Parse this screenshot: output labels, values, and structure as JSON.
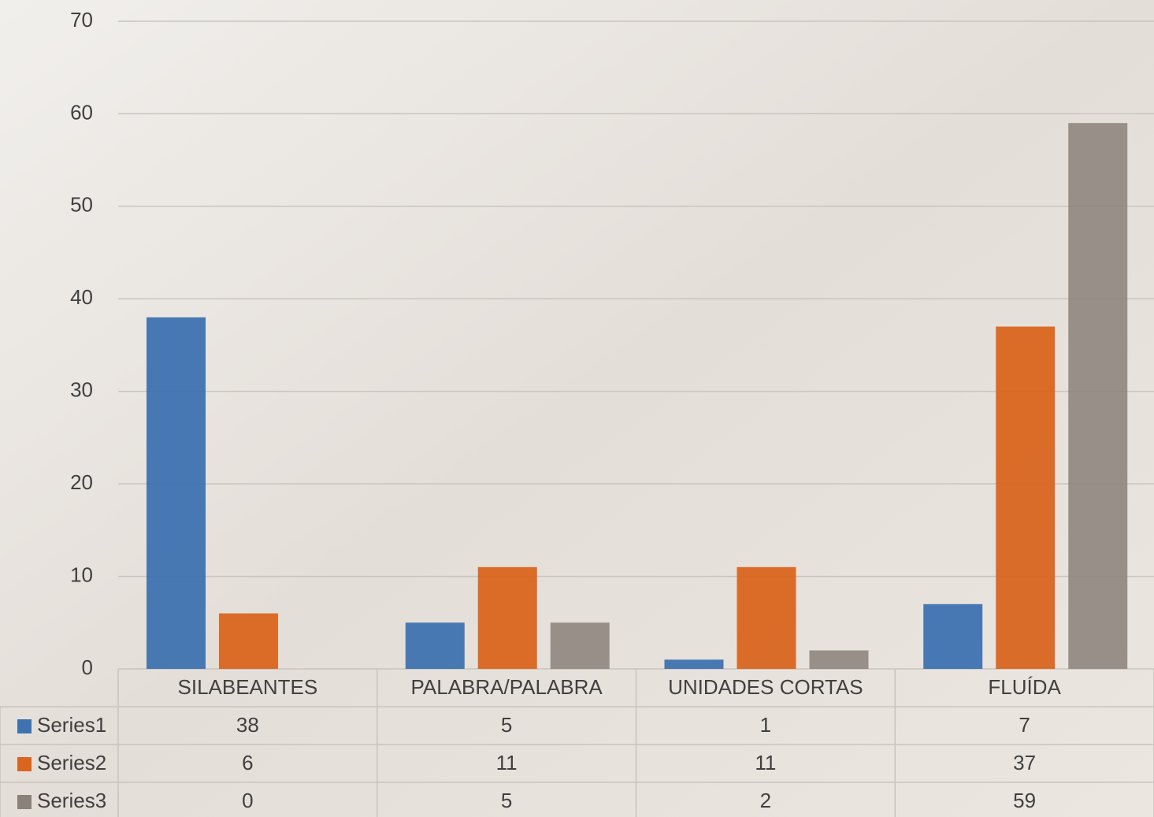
{
  "chart_data": {
    "type": "bar",
    "categories": [
      "SILABEANTES",
      "PALABRA/PALABRA",
      "UNIDADES CORTAS",
      "FLUÍDA"
    ],
    "series": [
      {
        "name": "Series1",
        "color": "#3f72b0",
        "values": [
          38,
          5,
          1,
          7
        ]
      },
      {
        "name": "Series2",
        "color": "#d9651f",
        "values": [
          6,
          11,
          11,
          37
        ]
      },
      {
        "name": "Series3",
        "color": "#8a8179",
        "values": [
          0,
          5,
          2,
          59
        ]
      }
    ],
    "ylim": [
      0,
      70
    ],
    "yticks": [
      0,
      10,
      20,
      30,
      40,
      50,
      60,
      70
    ],
    "grid": true,
    "data_table": true
  }
}
